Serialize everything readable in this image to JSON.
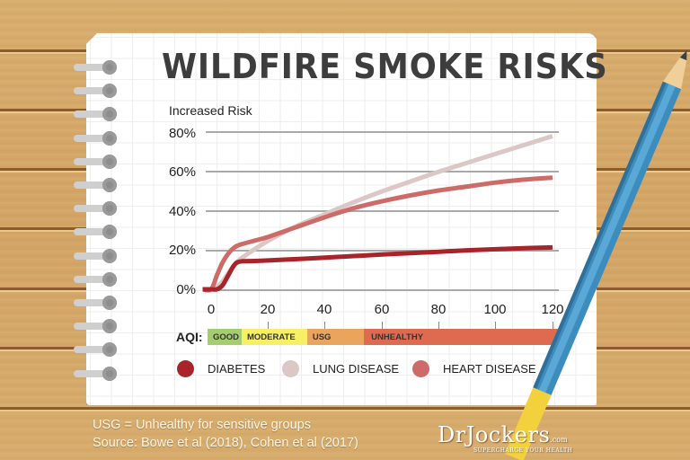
{
  "title": "WILDFIRE SMOKE RISKS",
  "y_axis_title": "Increased Risk",
  "y_ticks": [
    "80%",
    "60%",
    "40%",
    "20%",
    "0%"
  ],
  "x_ticks": [
    "0",
    "20",
    "40",
    "60",
    "80",
    "100",
    "120"
  ],
  "aqi": {
    "label": "AQI:",
    "bands": [
      {
        "label": "GOOD",
        "from": 0,
        "to": 12,
        "color": "#a4cd6e"
      },
      {
        "label": "MODERATE",
        "from": 12,
        "to": 35,
        "color": "#f7f065"
      },
      {
        "label": "USG",
        "from": 35,
        "to": 55,
        "color": "#eba45c"
      },
      {
        "label": "UNHEALTHY",
        "from": 55,
        "to": 124,
        "color": "#de6b50"
      }
    ]
  },
  "legend": [
    {
      "label": "DIABETES",
      "color": "#a8242a"
    },
    {
      "label": "LUNG DISEASE",
      "color": "#dcc7c7"
    },
    {
      "label": "HEART DISEASE",
      "color": "#cd6b68"
    }
  ],
  "footer": {
    "note": "USG = Unhealthy for sensitive groups",
    "source": "Source: Bowe et al (2018), Cohen et al (2017)"
  },
  "logo": {
    "name": "DrJockers",
    "suffix": ".com",
    "tagline": "SUPERCHARGE YOUR HEALTH"
  },
  "chart_data": {
    "type": "line",
    "title": "WILDFIRE SMOKE RISKS",
    "xlabel": "AQI",
    "ylabel": "Increased Risk",
    "xlim": [
      -3,
      120
    ],
    "ylim": [
      0,
      80
    ],
    "y_unit": "%",
    "grid": true,
    "legend_position": "bottom",
    "x": [
      -3,
      0,
      2,
      4,
      6,
      8,
      10,
      15,
      20,
      30,
      40,
      50,
      60,
      70,
      80,
      90,
      100,
      110,
      120
    ],
    "series": [
      {
        "name": "DIABETES",
        "color": "#a8242a",
        "values": [
          0,
          0,
          0,
          2,
          7,
          12,
          14,
          14.3,
          14.6,
          15.3,
          16,
          16.8,
          17.6,
          18.3,
          19,
          19.7,
          20.3,
          20.8,
          21.2
        ]
      },
      {
        "name": "LUNG DISEASE",
        "color": "#dcc7c7",
        "values": [
          0,
          0,
          1,
          4,
          8,
          12,
          15,
          20,
          24.5,
          32,
          38,
          44,
          49.5,
          54.5,
          59.5,
          64,
          68.5,
          73,
          77.5
        ]
      },
      {
        "name": "HEART DISEASE",
        "color": "#cd6b68",
        "values": [
          0,
          0,
          7,
          13.5,
          18,
          21,
          22.5,
          24.5,
          26.5,
          31.5,
          36.5,
          41,
          44.5,
          47.5,
          50,
          52,
          54,
          55.5,
          56.5
        ]
      }
    ],
    "bands": [
      {
        "label": "GOOD",
        "from": 0,
        "to": 12
      },
      {
        "label": "MODERATE",
        "from": 12,
        "to": 35
      },
      {
        "label": "USG",
        "from": 35,
        "to": 55
      },
      {
        "label": "UNHEALTHY",
        "from": 55,
        "to": 124
      }
    ],
    "annotations": [
      "USG = Unhealthy for sensitive groups",
      "Source: Bowe et al (2018), Cohen et al (2017)"
    ]
  }
}
